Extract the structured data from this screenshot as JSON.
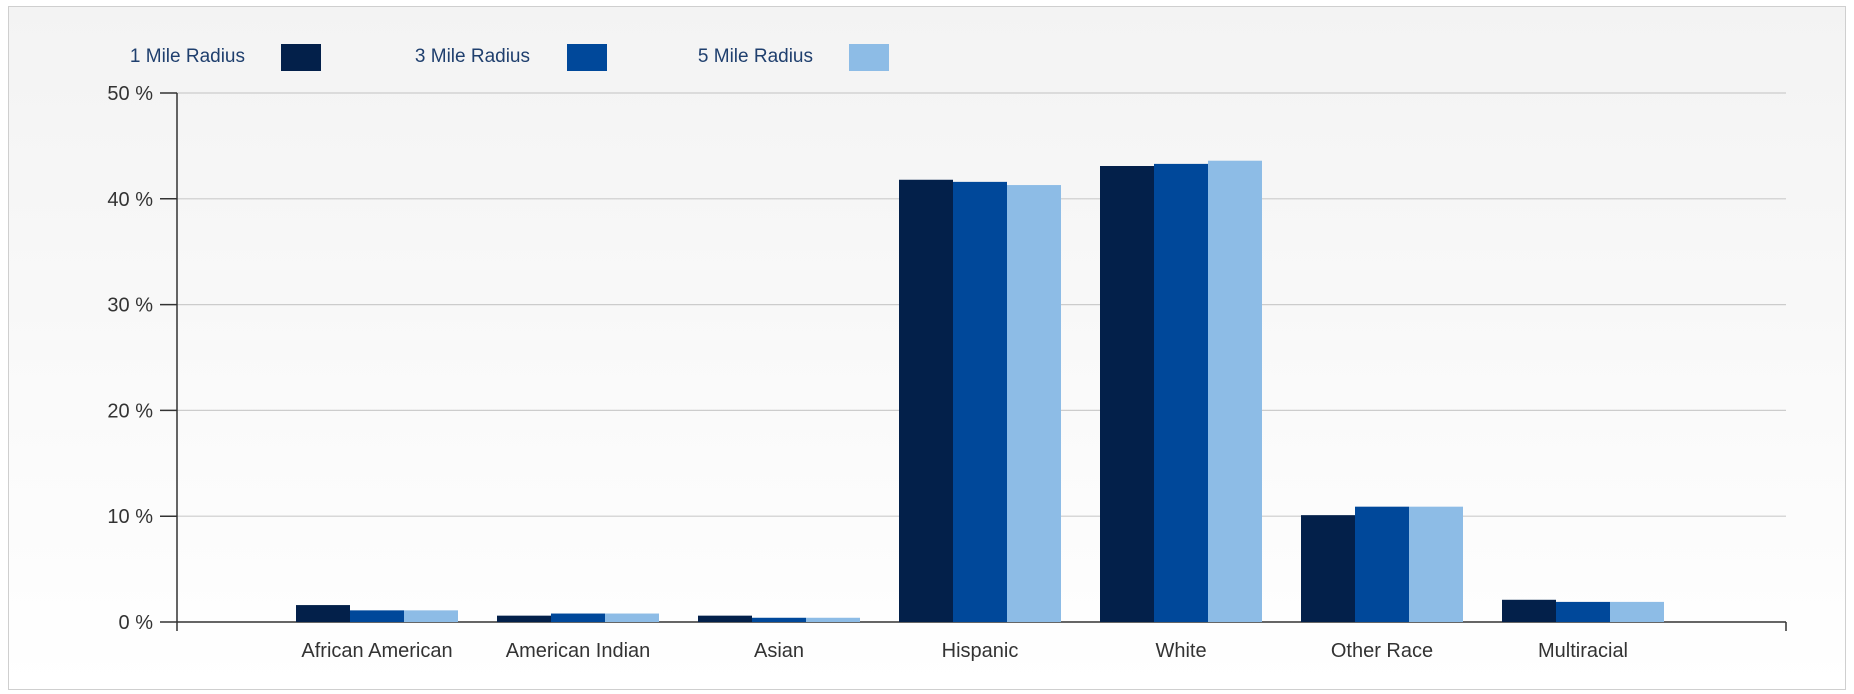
{
  "chart_data": {
    "type": "bar",
    "title": "",
    "xlabel": "",
    "ylabel": "",
    "ylim": [
      0,
      50
    ],
    "y_ticks": [
      0,
      10,
      20,
      30,
      40,
      50
    ],
    "y_tick_labels": [
      "0 %",
      "10 %",
      "20 %",
      "30 %",
      "40 %",
      "50 %"
    ],
    "grid": true,
    "legend_position": "top-left",
    "categories": [
      "African American",
      "American Indian",
      "Asian",
      "Hispanic",
      "White",
      "Other Race",
      "Multiracial"
    ],
    "series": [
      {
        "name": "1 Mile Radius",
        "color": "#03204a",
        "values": [
          1.6,
          0.6,
          0.6,
          41.8,
          43.1,
          10.1,
          2.1
        ]
      },
      {
        "name": "3 Mile Radius",
        "color": "#00489a",
        "values": [
          1.1,
          0.8,
          0.4,
          41.6,
          43.3,
          10.9,
          1.9
        ]
      },
      {
        "name": "5 Mile Radius",
        "color": "#8dbce6",
        "values": [
          1.1,
          0.8,
          0.4,
          41.3,
          43.6,
          10.9,
          1.9
        ]
      }
    ]
  }
}
